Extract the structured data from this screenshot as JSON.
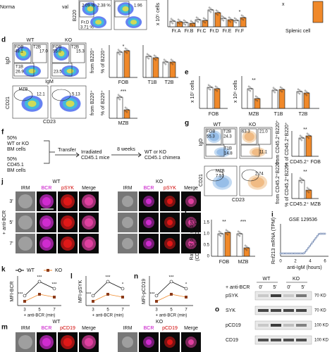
{
  "panel_labels": {
    "d": "d",
    "e": "e",
    "f": "f",
    "g": "g",
    "j": "j",
    "h": "h",
    "i": "i",
    "k": "k",
    "l": "l",
    "n": "n",
    "m": "m",
    "o": "o"
  },
  "top": {
    "cut": "Norma",
    "val": "val",
    "b220": "B220",
    "q1": "2.09 %",
    "q2": "2.38 %",
    "q3": "1.96",
    "frd": "Fr.D",
    "q4": "3.71 %",
    "ylabel": "x 10⁵ cells",
    "cats": [
      "Fr.A",
      "Fr.B",
      "Fr.C",
      "Fr.D",
      "Fr.E",
      "Fr.F"
    ],
    "sig": "*",
    "x": "x",
    "splenic": "Splenic cell"
  },
  "d": {
    "wt": "WT",
    "ko": "KO",
    "fob": "FOB",
    "t2b": "T2B",
    "t1b": "T1B",
    "wt_fob": "49.1",
    "wt_t2b": "17.0",
    "wt_t1b": "26.9",
    "ko_fob": "55.0",
    "ko_t2b": "15.3",
    "ko_t1b": "23.5",
    "igd": "IgD",
    "igm": "IgM",
    "from": "from B220⁺",
    "pct": "% of B220⁺",
    "bar_cats": [
      "FOB",
      "T1B",
      "T2B"
    ],
    "sig_fob": "*",
    "mzb": "MZB",
    "wt_mzb": "12.1",
    "ko_mzb": "5.13",
    "cd21": "CD21",
    "cd23": "CD23",
    "sig_mzb": "***"
  },
  "e": {
    "y1": "x 10⁷ cells",
    "y2": "x 10⁶ cells",
    "cats": [
      "FOB",
      "MZB",
      "T1B",
      "T2B"
    ],
    "sig": "**"
  },
  "f": {
    "donor1": [
      "50%",
      "WT or KO",
      "BM cells"
    ],
    "donor2": [
      "50%",
      "CD45.1",
      "BM cells"
    ],
    "transfer": "Transfer",
    "recipient": [
      "Irradiated",
      "CD45.1 mice"
    ],
    "weeks": "8 weeks",
    "result": [
      "WT or KO",
      "CD45.1 chimera"
    ]
  },
  "g": {
    "wt": "WT",
    "ko": "KO",
    "fob": "FOB",
    "t2b": "T2B",
    "t1b": "T1B",
    "wt_fob": "55.3",
    "wt_t2b": "24.3",
    "wt_t1b": "14.8",
    "ko_fob": "63.3",
    "ko_t2b": "21.0",
    "ko_t1b": "11.1",
    "igd": "IgD",
    "from": "from CD45.2⁺B220⁺",
    "pct": "% of CD45.2⁺B220⁺",
    "cat_fob": "CD45.2⁺ FOB",
    "sig_fob": "**",
    "mzb": "MZB",
    "wt_mzb": "7.51",
    "ko_mzb": "2.74",
    "cd21": "CD21",
    "cd23": "CD23",
    "cat_mzb": "CD45.2⁺ MZB",
    "sig_mzb": "**"
  },
  "j": {
    "wt": "WT",
    "ko": "KO",
    "columns": [
      "IRM",
      "BCR",
      "pSYK",
      "Merge"
    ],
    "rows": [
      "3'",
      "5'",
      "7'"
    ],
    "stim": "+ anti-BCR"
  },
  "h": {
    "ylabel": [
      "Ratio of cell subset",
      "(CD45.2⁺/CD45.1⁺)"
    ],
    "yticks": [
      "0",
      "0.5",
      "1.0",
      "1.5"
    ],
    "cats": [
      "FOB",
      "MZB"
    ],
    "sig": [
      "**",
      "***"
    ]
  },
  "i": {
    "title": "GSE 129536",
    "ylabel": "Rnf213 mRNA (TPM)",
    "xticks": [
      "0",
      "2",
      "4",
      "6"
    ],
    "xlabel": "anti-IgM (hours)"
  },
  "kln": {
    "legend": [
      "WT",
      "KO"
    ],
    "ylabels": [
      "MFI-BCR",
      "MFI-pSYK",
      "MFI-pCD19"
    ],
    "xticks": [
      "3",
      "5",
      "7"
    ],
    "xlabel": "+ anti-BCR (min)",
    "sig_k": [
      "***",
      "***",
      "***"
    ],
    "sig_l": [
      "***",
      "***",
      "*"
    ],
    "sig_n": [
      "***",
      "***",
      "*"
    ]
  },
  "m": {
    "wt": "WT",
    "ko": "KO",
    "columns": [
      "IRM",
      "BCR",
      "pCD19",
      "Merge"
    ]
  },
  "o": {
    "stim": "+ anti-BCR",
    "wt": "WT",
    "ko": "KO",
    "times": [
      "0'",
      "5'",
      "0'",
      "5'"
    ],
    "proteins": [
      "pSYK",
      "SYK",
      "pCD19",
      "CD19"
    ],
    "sizes": [
      "70 KD",
      "70 KD",
      "100 KD",
      "100 KD"
    ]
  }
}
